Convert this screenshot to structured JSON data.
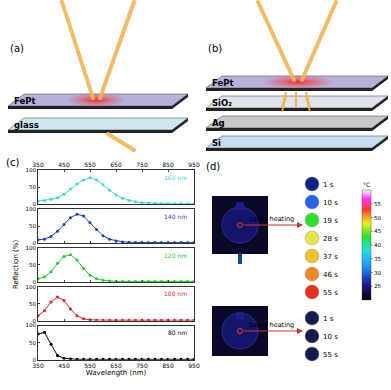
{
  "panels": {
    "a": {
      "label": "(a)",
      "layers": [
        {
          "text": "FePt",
          "color": "#b6b0dc"
        },
        {
          "text": "glass",
          "color": "#cfe7f3"
        }
      ]
    },
    "b": {
      "label": "(b)",
      "layers": [
        {
          "text": "FePt",
          "color": "#b6b0dc"
        },
        {
          "text": "SiO₂",
          "color": "#dfe3ea"
        },
        {
          "text": "Ag",
          "color": "#c8c8cc"
        },
        {
          "text": "Si",
          "color": "#c6def0"
        }
      ]
    },
    "c": {
      "label": "(c)"
    },
    "d": {
      "label": "(d)",
      "arrow_text": "Laser heating",
      "rows": [
        {
          "times": [
            {
              "label": "1 s",
              "color": "#14228a"
            },
            {
              "label": "10 s",
              "color": "#2464e6"
            },
            {
              "label": "19 s",
              "color": "#34dc34"
            },
            {
              "label": "28 s",
              "color": "#e6e64a"
            },
            {
              "label": "37 s",
              "color": "#f2c030"
            },
            {
              "label": "46 s",
              "color": "#f08a26"
            },
            {
              "label": "55 s",
              "color": "#e83020"
            }
          ]
        },
        {
          "times": [
            {
              "label": "1 s",
              "color": "#141a4c"
            },
            {
              "label": "10 s",
              "color": "#141a4c"
            },
            {
              "label": "55 s",
              "color": "#141a4c"
            }
          ]
        }
      ],
      "colorbar": {
        "unit": "°C",
        "range": [
          20,
          60
        ],
        "ticks": [
          25,
          30,
          35,
          40,
          45,
          50,
          55
        ]
      }
    }
  },
  "chart_data": {
    "type": "scatter",
    "marker": "circle",
    "grid": false,
    "xlabel": "Wavelength (nm)",
    "ylabel": "Reflection (%)",
    "xlim": [
      350,
      950
    ],
    "xticks": [
      350,
      450,
      550,
      650,
      750,
      850,
      950
    ],
    "ylim": [
      0,
      100
    ],
    "yticks": [
      0,
      50,
      100
    ],
    "x": [
      350,
      375,
      400,
      425,
      450,
      475,
      500,
      525,
      550,
      575,
      600,
      625,
      650,
      675,
      700,
      725,
      750,
      775,
      800,
      825,
      850,
      875,
      900,
      925,
      950
    ],
    "series": [
      {
        "name": "160 nm",
        "color": "#3cd6d6",
        "values": [
          10,
          12,
          15,
          20,
          30,
          45,
          60,
          72,
          78,
          72,
          58,
          42,
          28,
          18,
          12,
          8,
          5,
          4,
          3,
          2,
          2,
          2,
          2,
          2,
          2
        ]
      },
      {
        "name": "140 nm",
        "color": "#1f3fbf",
        "values": [
          10,
          12,
          20,
          35,
          55,
          75,
          85,
          80,
          60,
          40,
          22,
          12,
          7,
          4,
          3,
          2,
          2,
          2,
          2,
          2,
          2,
          2,
          2,
          2,
          2
        ]
      },
      {
        "name": "120 nm",
        "color": "#22cc22",
        "values": [
          10,
          15,
          30,
          55,
          75,
          80,
          65,
          40,
          20,
          10,
          5,
          3,
          2,
          2,
          2,
          2,
          2,
          2,
          2,
          2,
          2,
          2,
          2,
          2,
          2
        ]
      },
      {
        "name": "100 nm",
        "color": "#e02020",
        "values": [
          15,
          30,
          55,
          70,
          60,
          35,
          15,
          6,
          3,
          2,
          2,
          2,
          2,
          2,
          2,
          2,
          2,
          2,
          2,
          2,
          2,
          2,
          2,
          2,
          2
        ]
      },
      {
        "name": "80 nm",
        "color": "#000000",
        "values": [
          75,
          80,
          45,
          12,
          4,
          2,
          1,
          1,
          1,
          1,
          1,
          1,
          1,
          1,
          1,
          1,
          1,
          1,
          1,
          1,
          1,
          1,
          1,
          1,
          1
        ]
      }
    ]
  }
}
